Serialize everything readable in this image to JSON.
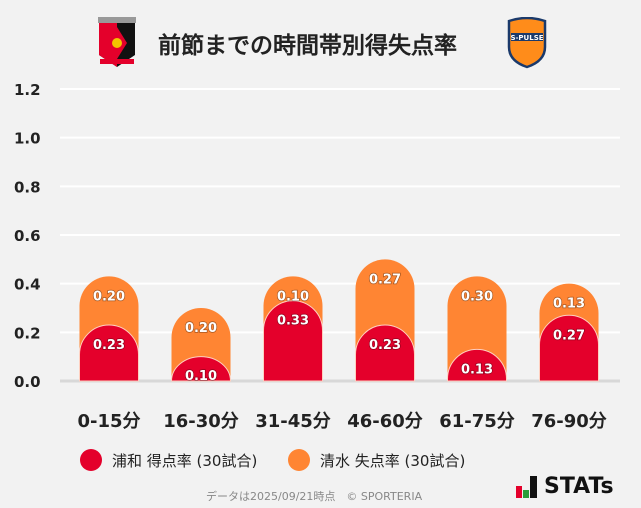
{
  "header": {
    "title": "前節までの時間帯別得失点率",
    "home_logo": "urawa-crest",
    "away_logo": "s-pulse-crest",
    "away_logo_text": "S-PULSE"
  },
  "chart_data": {
    "type": "bar",
    "stacked": true,
    "categories": [
      "0-15分",
      "16-30分",
      "31-45分",
      "46-60分",
      "61-75分",
      "76-90分"
    ],
    "series": [
      {
        "name": "浦和 得点率 (30試合)",
        "color": "#e4002b",
        "values": [
          0.23,
          0.1,
          0.33,
          0.23,
          0.13,
          0.27
        ],
        "labels": [
          "0.23",
          "0.10",
          "0.33",
          "0.23",
          "0.13",
          "0.27"
        ]
      },
      {
        "name": "清水 失点率 (30試合)",
        "color": "#ff8533",
        "values": [
          0.2,
          0.2,
          0.1,
          0.27,
          0.3,
          0.13
        ],
        "labels": [
          "0.20",
          "0.20",
          "0.10",
          "0.27",
          "0.30",
          "0.13"
        ]
      }
    ],
    "ylim": [
      0,
      1.2
    ],
    "yticks": [
      "0.0",
      "0.2",
      "0.4",
      "0.6",
      "0.8",
      "1.0",
      "1.2"
    ],
    "grid": true,
    "legend_position": "bottom"
  },
  "footer": {
    "note": "データは2025/09/21時点　© SPORTERIA",
    "brand": "STATs"
  }
}
